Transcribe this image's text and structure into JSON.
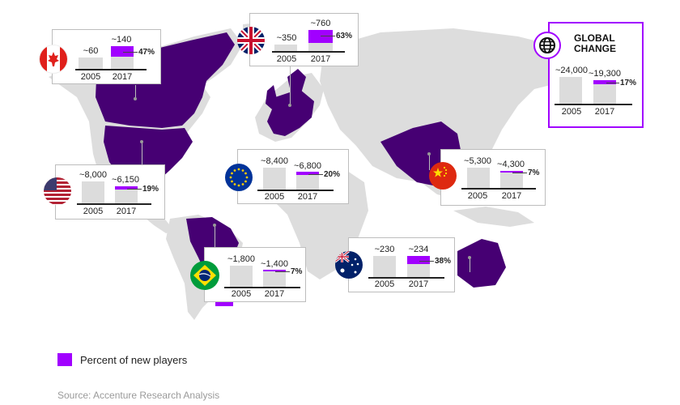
{
  "chart_data": {
    "type": "bar",
    "title": "",
    "subtitle": "",
    "categories": [
      "2005",
      "2017"
    ],
    "unit_note": "Percent of new players",
    "series": [
      {
        "name": "Canada",
        "values": [
          -60,
          -140
        ],
        "new_players_pct": "47%"
      },
      {
        "name": "UK",
        "values": [
          -350,
          -760
        ],
        "new_players_pct": "63%"
      },
      {
        "name": "USA",
        "values": [
          -8000,
          -6150
        ],
        "new_players_pct": "19%"
      },
      {
        "name": "EU",
        "values": [
          -8400,
          -6800
        ],
        "new_players_pct": "20%"
      },
      {
        "name": "China",
        "values": [
          -5300,
          -4300
        ],
        "new_players_pct": "7%"
      },
      {
        "name": "Brazil",
        "values": [
          -1800,
          -1400
        ],
        "new_players_pct": "7%"
      },
      {
        "name": "Australia",
        "values": [
          -230,
          -234
        ],
        "new_players_pct": "38%"
      },
      {
        "name": "Global",
        "values": [
          -24000,
          -19300
        ],
        "new_players_pct": "17%"
      }
    ]
  },
  "cards": [
    {
      "id": "canada",
      "label_2005": "~60",
      "label_2017": "~140",
      "pct": "47%",
      "pct_value": 0.47,
      "flag": "canada-flag-icon"
    },
    {
      "id": "uk",
      "label_2005": "~350",
      "label_2017": "~760",
      "pct": "63%",
      "pct_value": 0.63,
      "flag": "uk-flag-icon"
    },
    {
      "id": "usa",
      "label_2005": "~8,000",
      "label_2017": "~6,150",
      "pct": "19%",
      "pct_value": 0.19,
      "flag": "usa-flag-icon"
    },
    {
      "id": "eu",
      "label_2005": "~8,400",
      "label_2017": "~6,800",
      "pct": "20%",
      "pct_value": 0.2,
      "flag": "eu-flag-icon"
    },
    {
      "id": "china",
      "label_2005": "~5,300",
      "label_2017": "~4,300",
      "pct": "7%",
      "pct_value": 0.07,
      "flag": "china-flag-icon"
    },
    {
      "id": "brazil",
      "label_2005": "~1,800",
      "label_2017": "~1,400",
      "pct": "7%",
      "pct_value": 0.07,
      "flag": "brazil-flag-icon"
    },
    {
      "id": "australia",
      "label_2005": "~230",
      "label_2017": "~234",
      "pct": "38%",
      "pct_value": 0.38,
      "flag": "australia-flag-icon"
    },
    {
      "id": "global",
      "label_2005": "~24,000",
      "label_2017": "~19,300",
      "pct": "17%",
      "pct_value": 0.17,
      "flag": "globe-icon"
    }
  ],
  "year_2005": "2005",
  "year_2017": "2017",
  "global_title_line1": "GLOBAL",
  "global_title_line2": "CHANGE",
  "legend_label": "Percent of new players",
  "source": "Source: Accenture Research Analysis",
  "colors": {
    "accent": "#a100ff",
    "highlight_region": "#460073",
    "land": "#dddddd",
    "bar": "#dcdcdc"
  }
}
